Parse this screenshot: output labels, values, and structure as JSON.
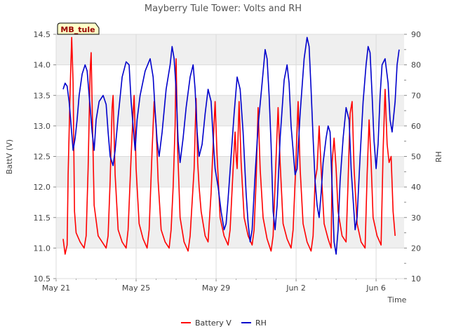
{
  "chart_data": {
    "type": "line",
    "title": "Mayberry Tule Tower: Volts and RH",
    "station_label": "MB_tule",
    "xlabel": "Time",
    "ylabel_left": "BattV (V)",
    "ylabel_right": "RH",
    "x_range_days": [
      0,
      17.4
    ],
    "ylim_left": [
      10.5,
      14.5
    ],
    "ylim_right": [
      10,
      90
    ],
    "left_ticks": [
      "10.5",
      "11.0",
      "11.5",
      "12.0",
      "12.5",
      "13.0",
      "13.5",
      "14.0",
      "14.5"
    ],
    "right_ticks": [
      "10",
      "20",
      "30",
      "40",
      "50",
      "60",
      "70",
      "80",
      "90"
    ],
    "x_ticks": [
      {
        "day": 0,
        "label": "May 21"
      },
      {
        "day": 4,
        "label": "May 25"
      },
      {
        "day": 8,
        "label": "May 29"
      },
      {
        "day": 12,
        "label": "Jun 2"
      },
      {
        "day": 16,
        "label": "Jun 6"
      }
    ],
    "grid": true,
    "series": [
      {
        "name": "Battery V",
        "axis": "left",
        "color": "#ff0000",
        "points": [
          [
            0.35,
            11.15
          ],
          [
            0.45,
            10.9
          ],
          [
            0.55,
            11.05
          ],
          [
            0.6,
            12.2
          ],
          [
            0.7,
            13.6
          ],
          [
            0.78,
            14.45
          ],
          [
            0.85,
            13.7
          ],
          [
            0.92,
            11.6
          ],
          [
            1.0,
            11.25
          ],
          [
            1.2,
            11.1
          ],
          [
            1.4,
            11.0
          ],
          [
            1.5,
            11.2
          ],
          [
            1.6,
            12.3
          ],
          [
            1.7,
            13.9
          ],
          [
            1.75,
            14.2
          ],
          [
            1.82,
            13.0
          ],
          [
            1.9,
            11.7
          ],
          [
            2.1,
            11.2
          ],
          [
            2.3,
            11.1
          ],
          [
            2.5,
            11.0
          ],
          [
            2.6,
            11.2
          ],
          [
            2.7,
            12.1
          ],
          [
            2.8,
            13.3
          ],
          [
            2.85,
            13.5
          ],
          [
            2.95,
            12.2
          ],
          [
            3.1,
            11.3
          ],
          [
            3.3,
            11.1
          ],
          [
            3.5,
            11.0
          ],
          [
            3.6,
            11.3
          ],
          [
            3.75,
            12.5
          ],
          [
            3.85,
            13.2
          ],
          [
            3.9,
            13.5
          ],
          [
            4.0,
            12.3
          ],
          [
            4.15,
            11.4
          ],
          [
            4.35,
            11.15
          ],
          [
            4.55,
            11.0
          ],
          [
            4.65,
            11.3
          ],
          [
            4.8,
            12.6
          ],
          [
            4.9,
            13.4
          ],
          [
            5.0,
            13.0
          ],
          [
            5.1,
            12.1
          ],
          [
            5.25,
            11.3
          ],
          [
            5.45,
            11.1
          ],
          [
            5.65,
            11.0
          ],
          [
            5.75,
            11.3
          ],
          [
            5.85,
            12.0
          ],
          [
            5.95,
            13.0
          ],
          [
            6.0,
            14.1
          ],
          [
            6.08,
            12.6
          ],
          [
            6.2,
            11.5
          ],
          [
            6.4,
            11.1
          ],
          [
            6.6,
            10.95
          ],
          [
            6.7,
            11.2
          ],
          [
            6.9,
            12.3
          ],
          [
            7.0,
            13.45
          ],
          [
            7.08,
            12.4
          ],
          [
            7.15,
            12.0
          ],
          [
            7.25,
            11.6
          ],
          [
            7.45,
            11.2
          ],
          [
            7.6,
            11.1
          ],
          [
            7.75,
            11.9
          ],
          [
            7.85,
            12.7
          ],
          [
            7.95,
            13.4
          ],
          [
            8.05,
            12.5
          ],
          [
            8.2,
            11.5
          ],
          [
            8.4,
            11.2
          ],
          [
            8.6,
            11.05
          ],
          [
            8.7,
            11.3
          ],
          [
            8.85,
            12.3
          ],
          [
            8.95,
            12.9
          ],
          [
            9.0,
            12.5
          ],
          [
            9.05,
            12.3
          ],
          [
            9.15,
            13.4
          ],
          [
            9.25,
            12.4
          ],
          [
            9.4,
            11.5
          ],
          [
            9.6,
            11.2
          ],
          [
            9.8,
            11.05
          ],
          [
            9.9,
            11.3
          ],
          [
            10.0,
            12.1
          ],
          [
            10.1,
            13.3
          ],
          [
            10.2,
            12.3
          ],
          [
            10.35,
            11.5
          ],
          [
            10.55,
            11.15
          ],
          [
            10.75,
            10.95
          ],
          [
            10.85,
            11.2
          ],
          [
            11.0,
            12.5
          ],
          [
            11.1,
            13.3
          ],
          [
            11.2,
            12.4
          ],
          [
            11.35,
            11.4
          ],
          [
            11.55,
            11.15
          ],
          [
            11.75,
            11.0
          ],
          [
            11.85,
            11.3
          ],
          [
            12.0,
            12.5
          ],
          [
            12.1,
            13.4
          ],
          [
            12.2,
            12.3
          ],
          [
            12.35,
            11.4
          ],
          [
            12.55,
            11.1
          ],
          [
            12.75,
            10.95
          ],
          [
            12.85,
            11.2
          ],
          [
            12.95,
            12.1
          ],
          [
            13.05,
            12.3
          ],
          [
            13.15,
            13.0
          ],
          [
            13.25,
            12.3
          ],
          [
            13.4,
            11.4
          ],
          [
            13.6,
            11.15
          ],
          [
            13.75,
            11.0
          ],
          [
            13.8,
            12.4
          ],
          [
            13.9,
            12.8
          ],
          [
            14.0,
            12.3
          ],
          [
            14.1,
            11.6
          ],
          [
            14.3,
            11.2
          ],
          [
            14.5,
            11.1
          ],
          [
            14.6,
            12.1
          ],
          [
            14.7,
            13.2
          ],
          [
            14.8,
            13.4
          ],
          [
            14.9,
            12.3
          ],
          [
            15.05,
            11.4
          ],
          [
            15.25,
            11.1
          ],
          [
            15.45,
            11.0
          ],
          [
            15.55,
            12.2
          ],
          [
            15.65,
            13.1
          ],
          [
            15.75,
            12.4
          ],
          [
            15.85,
            11.5
          ],
          [
            16.05,
            11.2
          ],
          [
            16.25,
            11.05
          ],
          [
            16.35,
            12.6
          ],
          [
            16.45,
            13.6
          ],
          [
            16.55,
            12.7
          ],
          [
            16.65,
            12.4
          ],
          [
            16.75,
            12.5
          ],
          [
            16.85,
            11.6
          ],
          [
            16.95,
            11.2
          ]
        ]
      },
      {
        "name": "RH",
        "axis": "right",
        "color": "#0000cc",
        "points": [
          [
            0.35,
            72
          ],
          [
            0.45,
            74
          ],
          [
            0.55,
            73
          ],
          [
            0.65,
            68
          ],
          [
            0.75,
            60
          ],
          [
            0.85,
            52
          ],
          [
            0.95,
            56
          ],
          [
            1.05,
            62
          ],
          [
            1.15,
            70
          ],
          [
            1.3,
            77
          ],
          [
            1.45,
            80
          ],
          [
            1.55,
            78
          ],
          [
            1.7,
            66
          ],
          [
            1.8,
            58
          ],
          [
            1.9,
            52
          ],
          [
            2.0,
            62
          ],
          [
            2.15,
            68
          ],
          [
            2.35,
            70
          ],
          [
            2.5,
            67
          ],
          [
            2.6,
            58
          ],
          [
            2.7,
            50
          ],
          [
            2.85,
            47
          ],
          [
            2.95,
            52
          ],
          [
            3.1,
            63
          ],
          [
            3.3,
            76
          ],
          [
            3.5,
            81
          ],
          [
            3.65,
            80
          ],
          [
            3.75,
            68
          ],
          [
            3.85,
            60
          ],
          [
            3.95,
            52
          ],
          [
            4.05,
            62
          ],
          [
            4.2,
            70
          ],
          [
            4.45,
            78
          ],
          [
            4.7,
            82
          ],
          [
            4.85,
            76
          ],
          [
            4.95,
            65
          ],
          [
            5.05,
            55
          ],
          [
            5.15,
            50
          ],
          [
            5.3,
            58
          ],
          [
            5.5,
            72
          ],
          [
            5.7,
            80
          ],
          [
            5.8,
            86
          ],
          [
            5.9,
            82
          ],
          [
            6.0,
            72
          ],
          [
            6.1,
            55
          ],
          [
            6.2,
            48
          ],
          [
            6.35,
            56
          ],
          [
            6.5,
            66
          ],
          [
            6.7,
            76
          ],
          [
            6.85,
            80
          ],
          [
            6.95,
            72
          ],
          [
            7.05,
            58
          ],
          [
            7.15,
            50
          ],
          [
            7.3,
            54
          ],
          [
            7.45,
            64
          ],
          [
            7.6,
            72
          ],
          [
            7.75,
            68
          ],
          [
            7.85,
            56
          ],
          [
            7.95,
            46
          ],
          [
            8.1,
            40
          ],
          [
            8.25,
            32
          ],
          [
            8.4,
            26
          ],
          [
            8.5,
            28
          ],
          [
            8.6,
            36
          ],
          [
            8.75,
            50
          ],
          [
            8.9,
            64
          ],
          [
            9.05,
            76
          ],
          [
            9.2,
            72
          ],
          [
            9.35,
            58
          ],
          [
            9.5,
            38
          ],
          [
            9.6,
            28
          ],
          [
            9.7,
            22
          ],
          [
            9.8,
            26
          ],
          [
            9.95,
            44
          ],
          [
            10.1,
            60
          ],
          [
            10.3,
            74
          ],
          [
            10.45,
            85
          ],
          [
            10.55,
            82
          ],
          [
            10.65,
            70
          ],
          [
            10.75,
            54
          ],
          [
            10.85,
            32
          ],
          [
            10.95,
            26
          ],
          [
            11.05,
            34
          ],
          [
            11.2,
            56
          ],
          [
            11.4,
            75
          ],
          [
            11.55,
            80
          ],
          [
            11.65,
            74
          ],
          [
            11.75,
            60
          ],
          [
            11.85,
            52
          ],
          [
            11.95,
            44
          ],
          [
            12.05,
            46
          ],
          [
            12.2,
            64
          ],
          [
            12.4,
            82
          ],
          [
            12.55,
            89
          ],
          [
            12.65,
            86
          ],
          [
            12.75,
            72
          ],
          [
            12.85,
            56
          ],
          [
            12.95,
            42
          ],
          [
            13.05,
            34
          ],
          [
            13.15,
            30
          ],
          [
            13.25,
            38
          ],
          [
            13.35,
            48
          ],
          [
            13.5,
            56
          ],
          [
            13.6,
            60
          ],
          [
            13.7,
            58
          ],
          [
            13.8,
            40
          ],
          [
            13.9,
            22
          ],
          [
            14.0,
            18
          ],
          [
            14.1,
            26
          ],
          [
            14.2,
            42
          ],
          [
            14.35,
            56
          ],
          [
            14.5,
            66
          ],
          [
            14.65,
            62
          ],
          [
            14.75,
            46
          ],
          [
            14.85,
            36
          ],
          [
            14.95,
            26
          ],
          [
            15.05,
            30
          ],
          [
            15.2,
            50
          ],
          [
            15.35,
            68
          ],
          [
            15.5,
            80
          ],
          [
            15.6,
            86
          ],
          [
            15.7,
            84
          ],
          [
            15.8,
            70
          ],
          [
            15.9,
            55
          ],
          [
            16.0,
            46
          ],
          [
            16.1,
            54
          ],
          [
            16.2,
            70
          ],
          [
            16.3,
            80
          ],
          [
            16.45,
            82
          ],
          [
            16.6,
            74
          ],
          [
            16.7,
            62
          ],
          [
            16.8,
            58
          ],
          [
            16.95,
            68
          ],
          [
            17.05,
            80
          ],
          [
            17.15,
            85
          ]
        ]
      }
    ],
    "legend_placement": "bottom-center"
  }
}
